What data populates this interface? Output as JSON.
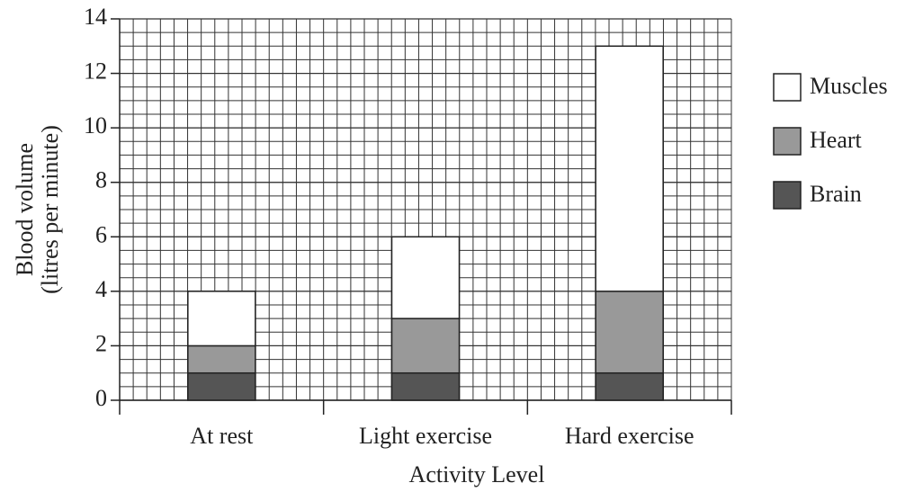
{
  "chart_data": {
    "type": "stacked_bar",
    "categories": [
      "At rest",
      "Light exercise",
      "Hard exercise"
    ],
    "series": [
      {
        "name": "Brain",
        "color": "#555555",
        "values": [
          1,
          1,
          1
        ]
      },
      {
        "name": "Heart",
        "color": "#999999",
        "values": [
          1,
          2,
          3
        ]
      },
      {
        "name": "Muscles",
        "color": "#ffffff",
        "values": [
          2,
          3,
          9
        ]
      }
    ],
    "ylim": [
      0,
      14
    ],
    "yticks": [
      0,
      2,
      4,
      6,
      8,
      10,
      12,
      14
    ],
    "ylabel": [
      "Blood volume",
      "(litres per minute)"
    ],
    "xlabel": "Activity Level",
    "grid": true,
    "legend": "right"
  }
}
